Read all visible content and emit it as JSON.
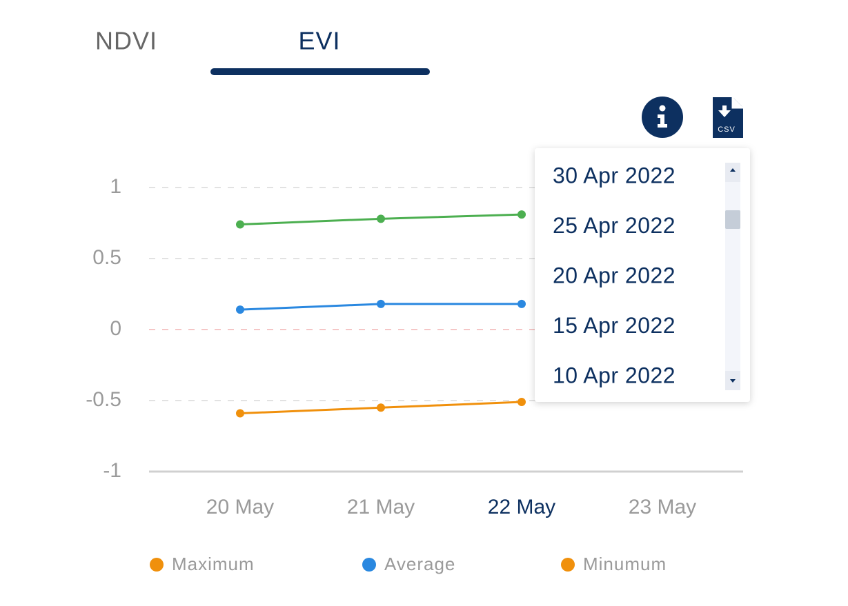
{
  "tabs": {
    "items": [
      "NDVI",
      "EVI"
    ],
    "selected": 1
  },
  "icons": {
    "csv_label": "CSV"
  },
  "chart_data": {
    "type": "line",
    "categories": [
      "20 May",
      "21 May",
      "22 May",
      "23 May"
    ],
    "selected_category": 2,
    "series": [
      {
        "name": "Maximum",
        "color": "#4caf50",
        "legend_color": "#f0900c",
        "values": [
          0.74,
          0.78,
          0.81,
          null
        ]
      },
      {
        "name": "Average",
        "color": "#2a88e0",
        "legend_color": "#2a88e0",
        "values": [
          0.14,
          0.18,
          0.18,
          null
        ]
      },
      {
        "name": "Minumum",
        "color": "#f0900c",
        "legend_color": "#f0900c",
        "values": [
          -0.59,
          -0.55,
          -0.51,
          null
        ]
      }
    ],
    "ylim": [
      -1,
      1
    ],
    "yticks": [
      1,
      0.5,
      0,
      -0.5,
      -1
    ],
    "grid": true
  },
  "dropdown": {
    "items": [
      "30 Apr 2022",
      "25 Apr 2022",
      "20 Apr 2022",
      "15 Apr 2022",
      "10 Apr 2022"
    ]
  }
}
